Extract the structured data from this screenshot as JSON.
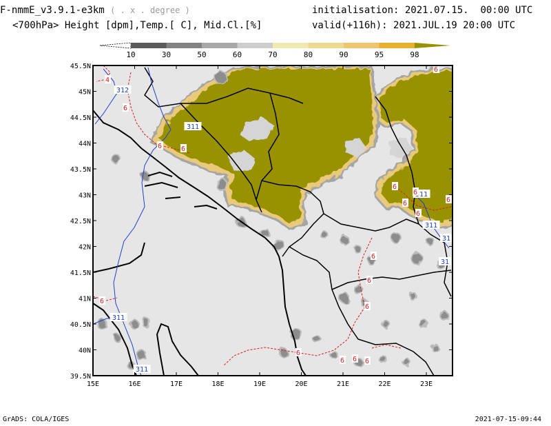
{
  "header": {
    "model": "F-nmmE_v3.9.1-e3km",
    "model_note": "( . x . degree )",
    "fields": "<700hPa> Height [dpm],Temp.[ C], Mid.Cl.[%]",
    "init_label": "initialisation:",
    "init_value": "2021.07.15.  00:00 UTC",
    "valid_label": "valid(+116h):",
    "valid_value": "2021.JUL.19 20:00 UTC"
  },
  "legend": {
    "levels": [
      "10",
      "30",
      "50",
      "60",
      "70",
      "80",
      "90",
      "95",
      "98"
    ],
    "colors": [
      "#ffffff",
      "#5a5a5a",
      "#828282",
      "#a8a8a8",
      "#cdcdcd",
      "#eeeab0",
      "#eed78e",
      "#eec570",
      "#e9b030",
      "#989100"
    ]
  },
  "map": {
    "lat_labels": [
      "45.5N",
      "45N",
      "44.5N",
      "44N",
      "43.5N",
      "43N",
      "42.5N",
      "42N",
      "41.5N",
      "41N",
      "40.5N",
      "40N",
      "39.5N"
    ],
    "lon_labels": [
      "15E",
      "16E",
      "17E",
      "18E",
      "19E",
      "20E",
      "21E",
      "22E",
      "23E"
    ],
    "height_labels": [
      "312",
      "311",
      "311",
      "311",
      "31",
      "31",
      "311",
      "311"
    ],
    "temp_labels": [
      "4",
      "6",
      "6",
      "6",
      "6",
      "6",
      "6",
      "6",
      "6",
      "6",
      "6",
      "6",
      "6",
      "6",
      "6",
      "6",
      "6",
      "6"
    ],
    "colors": {
      "background": "#e6e6e6",
      "cloud_high": "#989100",
      "cloud_edge": "#e9c97a",
      "cloud_mid": "#a5a5a5",
      "cloud_low": "#6f6f6f",
      "coast": "#000000",
      "height_contour": "#1c3fcf",
      "temp_contour": "#e01818"
    }
  },
  "footer": {
    "left": "GrADS: COLA/IGES",
    "right": "2021-07-15-09:44"
  }
}
